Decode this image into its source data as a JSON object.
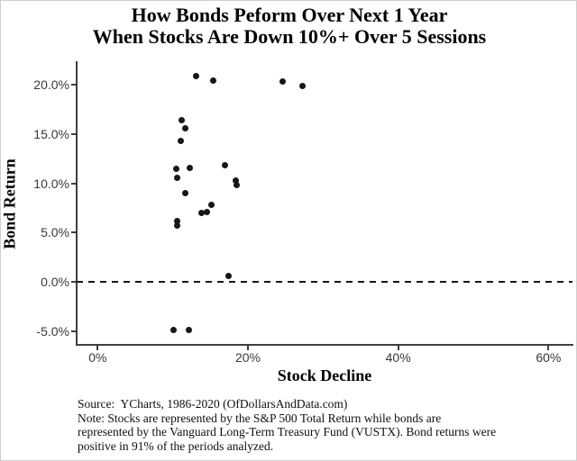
{
  "title": {
    "line1": "How Bonds Peform Over Next 1 Year",
    "line2": "When Stocks Are Down 10%+ Over 5 Sessions"
  },
  "chart_data": {
    "type": "scatter",
    "title": "How Bonds Peform Over Next 1 Year When Stocks Are Down 10%+ Over 5 Sessions",
    "xlabel": "Stock Decline",
    "ylabel": "Bond Return",
    "x_ticks": [
      {
        "value": 0,
        "label": "0%"
      },
      {
        "value": 20,
        "label": "20%"
      },
      {
        "value": 40,
        "label": "40%"
      },
      {
        "value": 60,
        "label": "60%"
      }
    ],
    "y_ticks": [
      {
        "value": 20,
        "label": "20.0%"
      },
      {
        "value": 15,
        "label": "15.0%"
      },
      {
        "value": 10,
        "label": "10.0%"
      },
      {
        "value": 5,
        "label": "5.0%"
      },
      {
        "value": 0,
        "label": "0.0%"
      },
      {
        "value": -5,
        "label": "-5.0%"
      }
    ],
    "xlim": [
      -2.8,
      63.2
    ],
    "ylim": [
      -6.3,
      22.4
    ],
    "grid": false,
    "legend": "none",
    "zero_reference_line": {
      "y": 0,
      "style": "dashed"
    },
    "points_units": "percent [stock_decline, bond_return]",
    "points": [
      [
        13.1,
        20.9
      ],
      [
        15.4,
        20.4
      ],
      [
        24.6,
        20.3
      ],
      [
        27.3,
        19.9
      ],
      [
        11.2,
        16.4
      ],
      [
        11.6,
        15.6
      ],
      [
        11.0,
        14.3
      ],
      [
        16.9,
        11.8
      ],
      [
        12.2,
        11.6
      ],
      [
        10.5,
        11.5
      ],
      [
        10.6,
        10.6
      ],
      [
        18.4,
        10.3
      ],
      [
        18.5,
        9.8
      ],
      [
        11.6,
        9.0
      ],
      [
        15.1,
        7.8
      ],
      [
        14.5,
        7.1
      ],
      [
        13.8,
        7.0
      ],
      [
        10.6,
        6.2
      ],
      [
        10.6,
        5.7
      ],
      [
        17.4,
        0.6
      ],
      [
        10.1,
        -4.9
      ],
      [
        12.1,
        -4.9
      ]
    ]
  },
  "footer": {
    "lines": [
      "Source:  YCharts, 1986-2020 (OfDollarsAndData.com)",
      "Note: Stocks are represented by the S&P 500 Total Return while bonds are",
      "represented by the Vanguard Long-Term Treasury Fund (VUSTX). Bond returns were",
      "positive in 91% of the periods analyzed."
    ]
  },
  "colors": {
    "point": "#161616",
    "axis": "#3f3f3f",
    "tick_label": "#383838",
    "dashed_line": "#161616"
  }
}
